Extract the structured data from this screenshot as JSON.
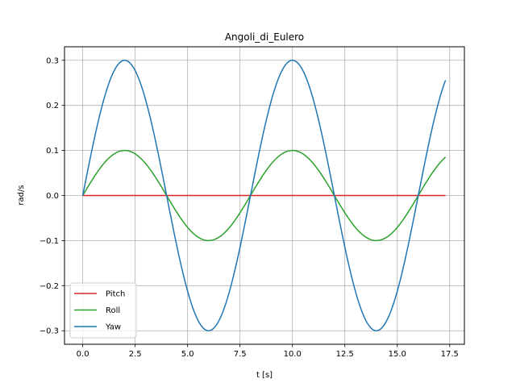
{
  "chart_data": {
    "type": "line",
    "title": "Angoli_di_Eulero",
    "xlabel": "t [s]",
    "ylabel": "rad/s",
    "xlim": [
      -0.87,
      18.2
    ],
    "ylim": [
      -0.33,
      0.33
    ],
    "grid": true,
    "legend_position": "lower-left",
    "x_ticks": [
      0.0,
      2.5,
      5.0,
      7.5,
      10.0,
      12.5,
      15.0,
      17.5
    ],
    "x_tick_labels": [
      "0.0",
      "2.5",
      "5.0",
      "7.5",
      "10.0",
      "12.5",
      "15.0",
      "17.5"
    ],
    "y_ticks": [
      -0.3,
      -0.2,
      -0.1,
      0.0,
      0.1,
      0.2,
      0.3
    ],
    "y_tick_labels": [
      "−0.3",
      "−0.2",
      "−0.1",
      "0.0",
      "0.1",
      "0.2",
      "0.3"
    ],
    "x": [
      0.0,
      1.0,
      2.0,
      3.0,
      4.0,
      5.0,
      6.0,
      7.0,
      8.0,
      9.0,
      10.0,
      11.0,
      12.0,
      13.0,
      14.0,
      15.0,
      16.0,
      17.0,
      17.3
    ],
    "series": [
      {
        "name": "Pitch",
        "color": "#d62728",
        "values": [
          0.0,
          0.0,
          0.0,
          0.0,
          0.0,
          0.0,
          0.0,
          0.0,
          0.0,
          0.0,
          0.0,
          0.0,
          0.0,
          0.0,
          0.0,
          0.0,
          0.0,
          0.0,
          0.0
        ]
      },
      {
        "name": "Roll",
        "color": "#2ca02c",
        "values": [
          0.0,
          0.071,
          0.1,
          0.071,
          0.0,
          -0.071,
          -0.1,
          -0.071,
          0.0,
          0.071,
          0.1,
          0.071,
          0.0,
          -0.071,
          -0.1,
          -0.071,
          0.0,
          0.071,
          0.086
        ]
      },
      {
        "name": "Yaw",
        "color": "#1f77b4",
        "values": [
          0.0,
          0.212,
          0.3,
          0.212,
          0.0,
          -0.212,
          -0.3,
          -0.212,
          0.0,
          0.212,
          0.3,
          0.212,
          0.0,
          -0.212,
          -0.3,
          -0.212,
          0.0,
          0.212,
          0.26
        ]
      }
    ]
  }
}
